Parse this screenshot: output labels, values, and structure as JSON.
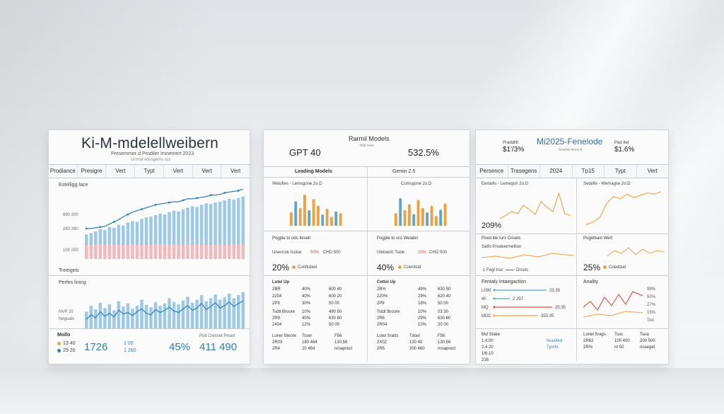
{
  "panels": {
    "left": {
      "title": "Ki-M-mdelellweibern",
      "subtitle": "Presemmer d Prodiler Ironeinert 2023",
      "subtitle2": "Urmoil wtosgems scc",
      "tabs": [
        "Prodiance",
        "Presigre",
        "Vert",
        "Typt",
        "Vert",
        "Vert",
        "Vert"
      ],
      "section1_label": "Estelligg lace",
      "axis_labels": [
        "890 200",
        "260 280",
        "100 200"
      ],
      "section2_label": "Treeigeis",
      "section3_label": "Perfes lining",
      "axis2_labels": [
        "NVP 20",
        "Neguals"
      ],
      "footer_label": "Mollo",
      "footer_items": [
        "13 40",
        "29 20"
      ],
      "footer_big": "1726",
      "footer_mid": "1 00",
      "footer_mid2": "1 260",
      "footer_pct": "45%",
      "footer_nums": "411 490",
      "footer_note": "Pult Cresset Pmart"
    },
    "middle": {
      "title": "Rarmil Models",
      "subtitle": "Wat tooe",
      "big_left": "GPT 40",
      "big_right": "532.5%",
      "col_heads": [
        "Leading Models",
        "Gemin 2.5"
      ],
      "chart_labels": [
        "Welofies - Lemsgone 2o.D",
        "Comsgone 2o.D"
      ],
      "row_labels": [
        "Pogple to ods Ileselt",
        "Pogple to vcs Weadel"
      ],
      "row_values_left": [
        "Unecrule Icoise",
        "50%",
        "CHD 500"
      ],
      "row_values_right": [
        "Uletoeric Tsele",
        "10%",
        "CHO 500"
      ],
      "pct_left": "20%",
      "pct_right": "40%",
      "legend_left": "Conflubed",
      "legend_right": "Coerdstd",
      "t1_left": [
        "Lotel Up",
        "2BR",
        "2204",
        "2P9"
      ],
      "t1_left_b": [
        "40%",
        "40%",
        "30%"
      ],
      "t1_left_c": [
        "600 40",
        "600 20",
        "50 00"
      ],
      "t1_right": [
        "Cettol Up",
        "2B%",
        "220%",
        "2P9"
      ],
      "t1_right_b": [
        "49%",
        "29%",
        "18%"
      ],
      "t1_right_c": [
        "630 50",
        "620 40",
        "50 00"
      ],
      "t2_left": [
        "Tsdtl Broore",
        "2R9",
        "2404"
      ],
      "t2_left_b": [
        "10%",
        "40%",
        "12%"
      ],
      "t2_left_c": [
        "490 50",
        "630 80",
        "50 00"
      ],
      "t2_right": [
        "Tstdt Broore",
        "2R6",
        "2R04"
      ],
      "t2_right_b": [
        "10%",
        "29%",
        "10%"
      ],
      "t2_right_c": [
        "03 30",
        "630 80",
        "20 00"
      ],
      "t3_left": [
        "Lonel Steore",
        "2R03",
        "2R4"
      ],
      "t3_left_b": [
        "Tsser",
        "180 464",
        "20 464"
      ],
      "t3_left_c": [
        "F56",
        "130.56",
        "nroaprect"
      ],
      "t3_right": [
        "Lotel Sratts",
        "2X02",
        "2R5"
      ],
      "t3_right_b": [
        "Tdset",
        "130 40",
        "200 460"
      ],
      "t3_right_c": [
        "F56",
        "130.56",
        "nroaprect"
      ]
    },
    "right": {
      "title": "Mi2025-Fenelode",
      "left_label": "Praddlitt",
      "left_val": "$1'/3%",
      "right_label": "Pad Itet",
      "right_val": "$1.6%",
      "center_sub": "Sraotal Isreccd",
      "tabs": [
        "Persence",
        "Trasegens",
        "2024",
        "Tp15",
        "Typt",
        "Vert"
      ],
      "chart_labels": [
        "Eertailis - Lemegon 2o.D",
        "Setalife - Wemagse 2o.D"
      ],
      "pct_209": "209%",
      "pct_25": "25%",
      "row_labels": [
        "Poed lite Iurv Crisets",
        "Pogefeast Wert"
      ],
      "row_sub": "Satfo Prodeermetlion",
      "legend_a": "1 Fegt Iruc",
      "legend_b": "Grovis",
      "legend_c": "Coeddud",
      "section_left": "Fentaly Intaegaction",
      "section_right": "Anality",
      "bar_labels": [
        "L090",
        "40",
        "MQ",
        "MDC"
      ],
      "bar_vals": [
        "23.35",
        "2 JST",
        "25.35",
        "353.35"
      ],
      "right_scale": [
        "99%",
        "50%",
        "27%",
        "15%",
        "Tod"
      ],
      "foot_left": [
        "Btd Stake",
        "1,4.00",
        "2,4 20",
        "1/6.10",
        "216"
      ],
      "foot_left_b": [
        "Nuuvled",
        "Tyorfe"
      ],
      "foot_right": [
        "Lonel Sraps",
        "2R62",
        "2R%"
      ],
      "foot_right_b": [
        "Tsoc",
        "100 400",
        "nt 50"
      ],
      "foot_right_c": [
        "Tsoa",
        "200 500",
        "noseget"
      ]
    }
  },
  "colors": {
    "bar_blue": "#9ec9e6",
    "line_blue": "#2f7fb5",
    "bar_pink": "#f2b9bd",
    "orange": "#f0a040",
    "teal": "#5aa7c9",
    "red": "#e04b3a"
  },
  "chart_data": [
    {
      "type": "bar",
      "title": "Estelligg lace",
      "values": [
        14,
        16,
        18,
        21,
        20,
        24,
        23,
        27,
        26,
        30,
        32,
        31,
        35,
        37,
        38,
        40,
        42,
        41,
        44,
        46,
        45,
        48,
        50,
        52,
        51,
        54,
        56,
        55,
        57,
        58,
        60,
        62,
        61,
        63,
        65
      ],
      "line": [
        22,
        22,
        23,
        24,
        25,
        28,
        31,
        34,
        38,
        41,
        44,
        46,
        48,
        50,
        52,
        54,
        55,
        56,
        57,
        58,
        58,
        60,
        62,
        62,
        63,
        64,
        65,
        67,
        67,
        68,
        70,
        71,
        72,
        73,
        75
      ],
      "ylim": [
        0,
        80
      ]
    },
    {
      "type": "bar",
      "title": "Perfes lining",
      "values": [
        22,
        30,
        25,
        34,
        27,
        32,
        24,
        36,
        29,
        33,
        26,
        30,
        38,
        31,
        28,
        35,
        30,
        33,
        40,
        35,
        32,
        37,
        42,
        34,
        38,
        44,
        36,
        40,
        45,
        38,
        41,
        46,
        40,
        44,
        48
      ],
      "line": [
        12,
        18,
        14,
        22,
        16,
        20,
        15,
        24,
        19,
        21,
        17,
        22,
        26,
        20,
        18,
        25,
        21,
        24,
        28,
        23,
        21,
        26,
        30,
        24,
        27,
        33,
        25,
        29,
        34,
        27,
        30,
        35,
        29,
        33,
        36
      ],
      "ylim": [
        0,
        60
      ]
    },
    {
      "type": "bar",
      "title": "Welofies - Lemsgone 2o.D",
      "values": [
        30,
        55,
        40,
        70,
        35,
        60,
        45,
        25,
        38,
        20,
        32,
        28
      ],
      "ylim": [
        0,
        80
      ]
    },
    {
      "type": "bar",
      "title": "Comsgone 2o.D",
      "values": [
        28,
        62,
        35,
        48,
        26,
        58,
        40,
        30,
        45,
        22,
        36,
        50
      ],
      "ylim": [
        0,
        80
      ]
    },
    {
      "type": "line",
      "title": "Eertailis - Lemegon 2o.D",
      "values": [
        5,
        8,
        12,
        10,
        18,
        14,
        9,
        22,
        16,
        12,
        30,
        10,
        8
      ],
      "ylim": [
        0,
        35
      ]
    },
    {
      "type": "line",
      "title": "Setalife - Wemagse 2o.D",
      "values": [
        4,
        6,
        10,
        22,
        28,
        26,
        30,
        27,
        29,
        31,
        30,
        32
      ],
      "ylim": [
        0,
        35
      ]
    }
  ]
}
